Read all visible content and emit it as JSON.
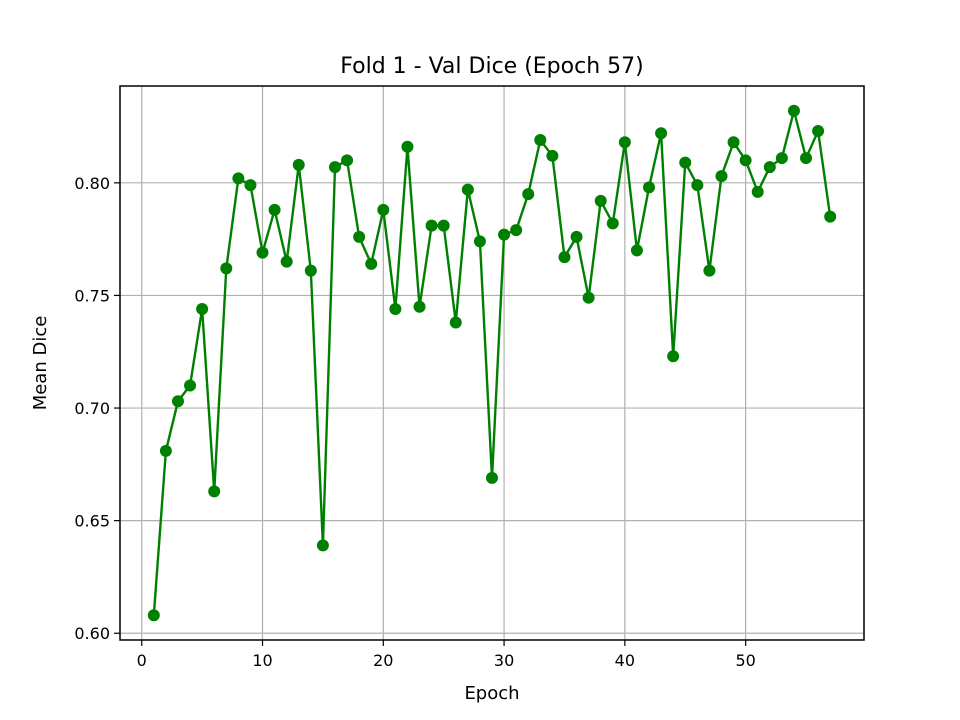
{
  "chart_data": {
    "type": "line",
    "title": "Fold 1 - Val Dice (Epoch 57)",
    "xlabel": "Epoch",
    "ylabel": "Mean Dice",
    "xlim": [
      -1.8,
      59.8
    ],
    "ylim": [
      0.597,
      0.843
    ],
    "xticks": [
      0,
      10,
      20,
      30,
      40,
      50
    ],
    "xtick_labels": [
      "0",
      "10",
      "20",
      "30",
      "40",
      "50"
    ],
    "yticks": [
      0.6,
      0.65,
      0.7,
      0.75,
      0.8
    ],
    "ytick_labels": [
      "0.60",
      "0.65",
      "0.70",
      "0.75",
      "0.80"
    ],
    "grid": true,
    "series_color": "#008000",
    "marker": "circle",
    "x": [
      1,
      2,
      3,
      4,
      5,
      6,
      7,
      8,
      9,
      10,
      11,
      12,
      13,
      14,
      15,
      16,
      17,
      18,
      19,
      20,
      21,
      22,
      23,
      24,
      25,
      26,
      27,
      28,
      29,
      30,
      31,
      32,
      33,
      34,
      35,
      36,
      37,
      38,
      39,
      40,
      41,
      42,
      43,
      44,
      45,
      46,
      47,
      48,
      49,
      50,
      51,
      52,
      53,
      54,
      55,
      56,
      57
    ],
    "y": [
      0.608,
      0.681,
      0.703,
      0.71,
      0.744,
      0.663,
      0.762,
      0.802,
      0.799,
      0.769,
      0.788,
      0.765,
      0.808,
      0.761,
      0.639,
      0.807,
      0.81,
      0.776,
      0.764,
      0.788,
      0.744,
      0.816,
      0.745,
      0.781,
      0.781,
      0.738,
      0.797,
      0.774,
      0.669,
      0.777,
      0.779,
      0.795,
      0.819,
      0.812,
      0.767,
      0.776,
      0.749,
      0.792,
      0.782,
      0.818,
      0.77,
      0.798,
      0.822,
      0.723,
      0.809,
      0.799,
      0.761,
      0.803,
      0.818,
      0.81,
      0.796,
      0.807,
      0.811,
      0.832,
      0.811,
      0.823,
      0.785
    ]
  }
}
